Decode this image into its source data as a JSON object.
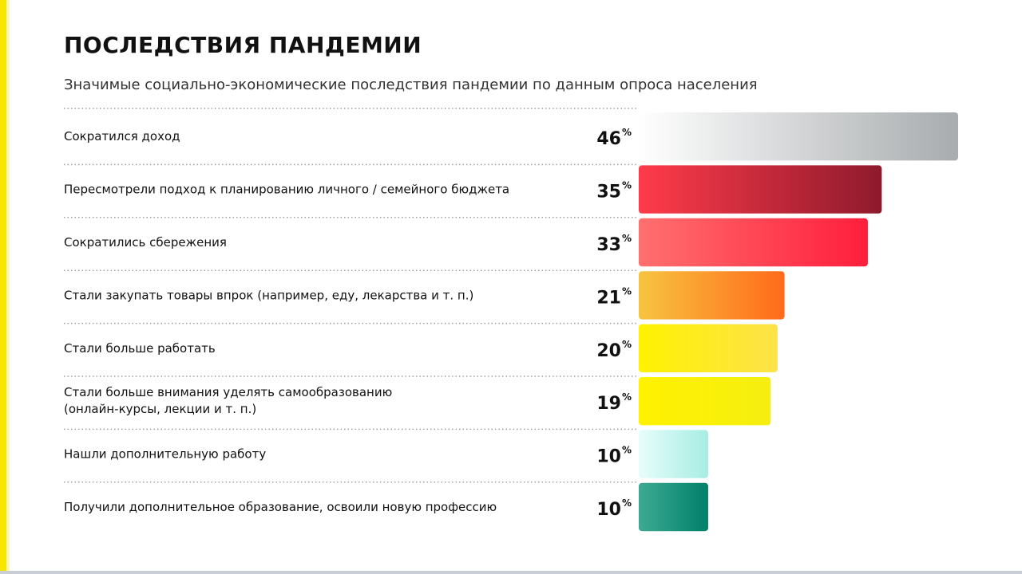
{
  "header": {
    "title": "ПОСЛЕДСТВИЯ ПАНДЕМИИ",
    "subtitle": "Значимые социально-экономические последствия пандемии по данным опроса населения"
  },
  "colors": {
    "accent": "#f7e600",
    "divider": "#9aa0a6"
  },
  "chart_data": {
    "type": "bar",
    "orientation": "horizontal",
    "unit": "%",
    "xlim": [
      0,
      46
    ],
    "grid": false,
    "legend": "none",
    "categories": [
      [
        "Сократился доход"
      ],
      [
        "Пересмотрели подход к планированию личного / семейного бюджета"
      ],
      [
        "Сократились сбережения"
      ],
      [
        "Стали закупать товары впрок (например, еду, лекарства и т. п.)"
      ],
      [
        "Стали больше работать"
      ],
      [
        "Стали больше внимания уделять самообразованию",
        "(онлайн-курсы, лекции и т. п.)"
      ],
      [
        "Нашли дополнительную работу"
      ],
      [
        "Получили дополнительное образование, освоили новую профессию"
      ]
    ],
    "values": [
      46,
      35,
      33,
      21,
      20,
      19,
      10,
      10
    ],
    "bar_colors": [
      [
        "#ffffff",
        "#a8acae"
      ],
      [
        "#ff3b4a",
        "#8e1a2c"
      ],
      [
        "#ff7070",
        "#ff1e3c"
      ],
      [
        "#f7c440",
        "#ff6a1a"
      ],
      [
        "#fff200",
        "#fde24a"
      ],
      [
        "#fff200",
        "#f5ee10"
      ],
      [
        "#e8fdfb",
        "#a6ede3"
      ],
      [
        "#3ea993",
        "#00806a"
      ]
    ]
  }
}
